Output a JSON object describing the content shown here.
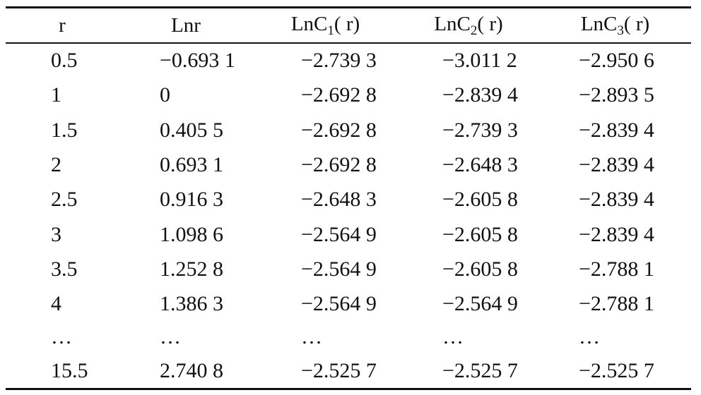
{
  "table": {
    "headers": {
      "r": "r",
      "lnr": "Lnr",
      "c1_prefix": "LnC",
      "c1_sub": "1",
      "c1_suffix": "( r)",
      "c2_prefix": "LnC",
      "c2_sub": "2",
      "c2_suffix": "( r)",
      "c3_prefix": "LnC",
      "c3_sub": "3",
      "c3_suffix": "( r)"
    },
    "rows": [
      [
        "0.5",
        "−0.693 1",
        "−2.739 3",
        "−3.011 2",
        "−2.950 6"
      ],
      [
        "1",
        "0",
        "−2.692 8",
        "−2.839 4",
        "−2.893 5"
      ],
      [
        "1.5",
        "0.405 5",
        "−2.692 8",
        "−2.739 3",
        "−2.839 4"
      ],
      [
        "2",
        "0.693 1",
        "−2.692 8",
        "−2.648 3",
        "−2.839 4"
      ],
      [
        "2.5",
        "0.916 3",
        "−2.648 3",
        "−2.605 8",
        "−2.839 4"
      ],
      [
        "3",
        "1.098 6",
        "−2.564 9",
        "−2.605 8",
        "−2.839 4"
      ],
      [
        "3.5",
        "1.252 8",
        "−2.564 9",
        "−2.605 8",
        "−2.788 1"
      ],
      [
        "4",
        "1.386 3",
        "−2.564 9",
        "−2.564 9",
        "−2.788 1"
      ],
      [
        "…",
        "…",
        "…",
        "…",
        "…"
      ],
      [
        "15.5",
        "2.740 8",
        "−2.525 7",
        "−2.525 7",
        "−2.525 7"
      ]
    ]
  }
}
